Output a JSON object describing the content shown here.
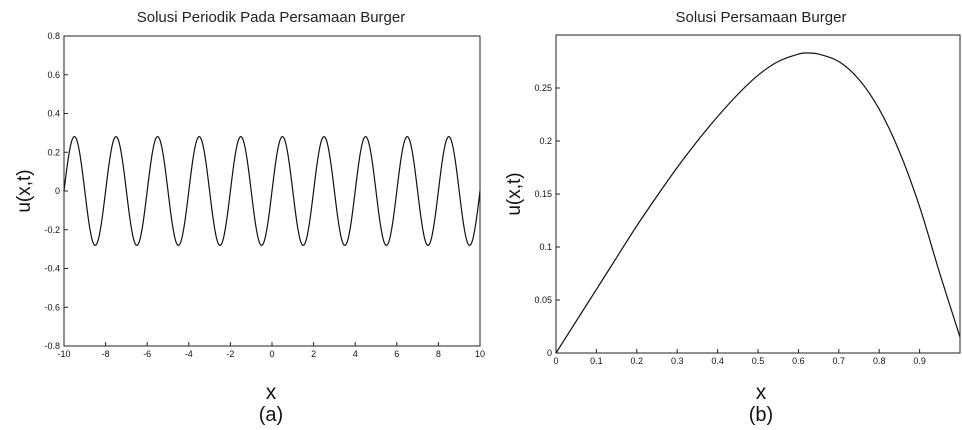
{
  "chart_data": [
    {
      "type": "line",
      "title": "Solusi Periodik Pada Persamaan Burger",
      "xlabel": "x",
      "ylabel": "u(x,t)",
      "caption": "(a)",
      "xlim": [
        -10,
        10
      ],
      "ylim": [
        -0.8,
        0.8
      ],
      "xticks": [
        -10,
        -8,
        -6,
        -4,
        -2,
        0,
        2,
        4,
        6,
        8,
        10
      ],
      "yticks": [
        -0.8,
        -0.6,
        -0.4,
        -0.2,
        0,
        0.2,
        0.4,
        0.6,
        0.8
      ],
      "xtick_labels": [
        "-10",
        "-8",
        "-6",
        "-4",
        "-2",
        "0",
        "2",
        "4",
        "6",
        "8",
        "10"
      ],
      "ytick_labels": [
        "-0.8",
        "-0.6",
        "-0.4",
        "-0.2",
        "0",
        "0.2",
        "0.4",
        "0.6",
        "0.8"
      ],
      "grid": false,
      "series": [
        {
          "x": [
            -10,
            -9.8,
            -9.6,
            -9.4,
            -9.2,
            -9.0,
            -8.8,
            -8.6,
            -8.4,
            -8.2,
            -8.0,
            -7.8,
            -7.6,
            -7.4,
            -7.2,
            -7.0,
            -6.8,
            -6.6,
            -6.4,
            -6.2,
            -6.0,
            -5.8,
            -5.6,
            -5.4,
            -5.2,
            -5.0,
            -4.8,
            -4.6,
            -4.4,
            -4.2,
            -4.0,
            -3.8,
            -3.6,
            -3.4,
            -3.2,
            -3.0,
            -2.8,
            -2.6,
            -2.4,
            -2.2,
            -2.0,
            -1.8,
            -1.6,
            -1.4,
            -1.2,
            -1.0,
            -0.8,
            -0.6,
            -0.4,
            -0.2,
            0,
            0.2,
            0.4,
            0.6,
            0.8,
            1.0,
            1.2,
            1.4,
            1.6,
            1.8,
            2.0,
            2.2,
            2.4,
            2.6,
            2.8,
            3.0,
            3.2,
            3.4,
            3.6,
            3.8,
            4.0,
            4.2,
            4.4,
            4.6,
            4.8,
            5.0,
            5.2,
            5.4,
            5.6,
            5.8,
            6.0,
            6.2,
            6.4,
            6.6,
            6.8,
            7.0,
            7.2,
            7.4,
            7.6,
            7.8,
            8.0,
            8.2,
            8.4,
            8.6,
            8.8,
            9.0,
            9.2,
            9.4,
            9.6,
            9.8,
            10
          ],
          "y": [
            0,
            0.165,
            0.267,
            0.267,
            0.165,
            0,
            -0.165,
            -0.267,
            -0.267,
            -0.165,
            0,
            0.165,
            0.267,
            0.267,
            0.165,
            0,
            -0.165,
            -0.267,
            -0.267,
            -0.165,
            0,
            0.165,
            0.267,
            0.267,
            0.165,
            0,
            -0.165,
            -0.267,
            -0.267,
            -0.165,
            0,
            0.165,
            0.267,
            0.267,
            0.165,
            0,
            -0.165,
            -0.267,
            -0.267,
            -0.165,
            0,
            0.165,
            0.267,
            0.267,
            0.165,
            0,
            -0.165,
            -0.267,
            -0.267,
            -0.165,
            0,
            0.165,
            0.267,
            0.267,
            0.165,
            0,
            -0.165,
            -0.267,
            -0.267,
            -0.165,
            0,
            0.165,
            0.267,
            0.267,
            0.165,
            0,
            -0.165,
            -0.267,
            -0.267,
            -0.165,
            0,
            0.165,
            0.267,
            0.267,
            0.165,
            0,
            -0.165,
            -0.267,
            -0.267,
            -0.165,
            0,
            0.165,
            0.267,
            0.267,
            0.165,
            0,
            -0.165,
            -0.267,
            -0.267,
            -0.165,
            0,
            0.165,
            0.267,
            0.267,
            0.165,
            0,
            -0.165,
            -0.267,
            -0.267,
            -0.165,
            0
          ]
        }
      ]
    },
    {
      "type": "line",
      "title": "Solusi Persamaan Burger",
      "xlabel": "x",
      "ylabel": "u(x,t)",
      "caption": "(b)",
      "xlim": [
        0,
        1
      ],
      "ylim": [
        0,
        0.3
      ],
      "xticks": [
        0,
        0.1,
        0.2,
        0.3,
        0.4,
        0.5,
        0.6,
        0.7,
        0.8,
        0.9
      ],
      "yticks": [
        0,
        0.05,
        0.1,
        0.15,
        0.2,
        0.25
      ],
      "xtick_labels": [
        "0",
        "0.1",
        "0.2",
        "0.3",
        "0.4",
        "0.5",
        "0.6",
        "0.7",
        "0.8",
        "0.9"
      ],
      "ytick_labels": [
        "0",
        "0.05",
        "0.1",
        "0.15",
        "0.2",
        "0.25"
      ],
      "grid": false,
      "series": [
        {
          "x": [
            0,
            0.05,
            0.1,
            0.15,
            0.2,
            0.25,
            0.3,
            0.35,
            0.4,
            0.45,
            0.5,
            0.55,
            0.6,
            0.62,
            0.65,
            0.7,
            0.75,
            0.8,
            0.85,
            0.9,
            0.95,
            1.0
          ],
          "y": [
            0,
            0.03,
            0.06,
            0.09,
            0.12,
            0.148,
            0.175,
            0.2,
            0.223,
            0.244,
            0.262,
            0.275,
            0.282,
            0.283,
            0.282,
            0.275,
            0.258,
            0.23,
            0.19,
            0.138,
            0.075,
            0.015
          ]
        }
      ]
    }
  ]
}
